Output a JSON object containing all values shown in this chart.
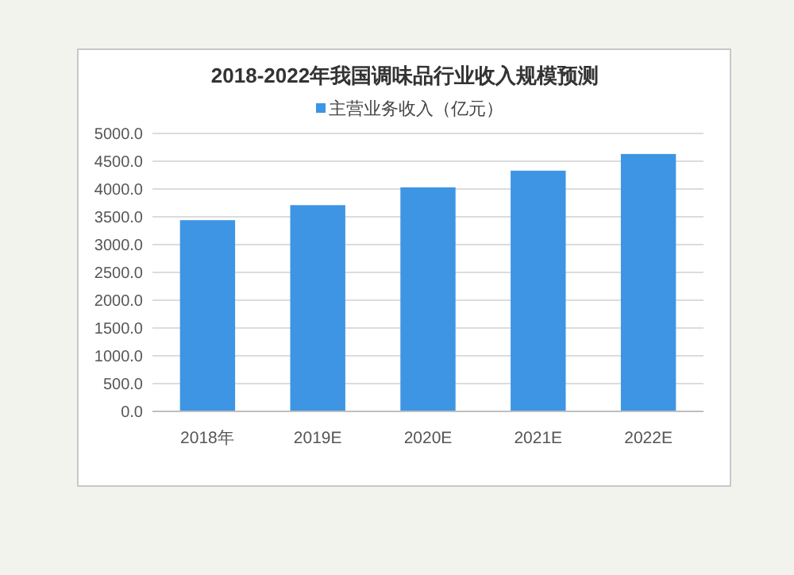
{
  "chart_data": {
    "type": "bar",
    "title": "2018-2022年我国调味品行业收入规模预测",
    "categories": [
      "2018年",
      "2019E",
      "2020E",
      "2021E",
      "2022E"
    ],
    "series": [
      {
        "name": "主营业务收入（亿元）",
        "color": "#3d95e4",
        "values": [
          3440,
          3710,
          4030,
          4330,
          4630
        ]
      }
    ],
    "ylim": [
      0,
      5000
    ],
    "yticks": [
      {
        "value": 0,
        "label": "0.0"
      },
      {
        "value": 500,
        "label": "500.0"
      },
      {
        "value": 1000,
        "label": "1000.0"
      },
      {
        "value": 1500,
        "label": "1500.0"
      },
      {
        "value": 2000,
        "label": "2000.0"
      },
      {
        "value": 2500,
        "label": "2500.0"
      },
      {
        "value": 3000,
        "label": "3000.0"
      },
      {
        "value": 3500,
        "label": "3500.0"
      },
      {
        "value": 4000,
        "label": "4000.0"
      },
      {
        "value": 4500,
        "label": "4500.0"
      },
      {
        "value": 5000,
        "label": "5000.0"
      }
    ],
    "grid": "y",
    "legend": "top"
  }
}
